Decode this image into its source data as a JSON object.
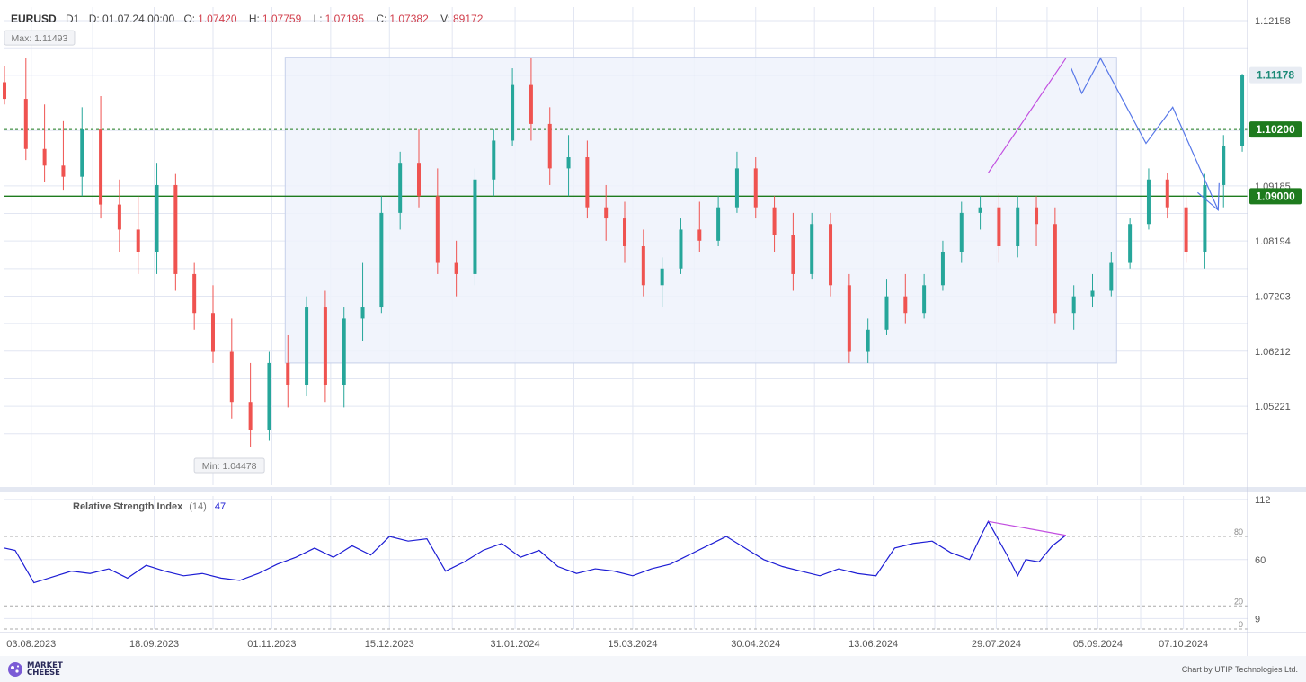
{
  "header": {
    "symbol": "EURUSD",
    "timeframe": "D1",
    "date_label": "D: 01.07.24 00:00",
    "open_label": "O:",
    "open": "1.07420",
    "high_label": "H:",
    "high": "1.07759",
    "low_label": "L:",
    "low": "1.07195",
    "close_label": "C:",
    "close": "1.07382",
    "volume_label": "V:",
    "volume": "89172"
  },
  "footer": {
    "brand_line1": "MARKET",
    "brand_line2": "CHEESE",
    "credit": "Chart by UTIP Technologies Ltd."
  },
  "colors": {
    "bull": "#26a69a",
    "bear": "#ef5350",
    "rsi": "#1d1dd4",
    "divergence": "#c24ee0",
    "forecast": "#5878e8",
    "level": "#1e7b1e",
    "range_box": "#eef2fb",
    "grid": "#e2e6f2"
  },
  "chart_data": [
    {
      "type": "candlestick",
      "title": "EURUSD D1",
      "y_ticks": [
        "1.12158",
        "1.11178",
        "1.09185",
        "1.08194",
        "1.07203",
        "1.06212",
        "1.05221"
      ],
      "x_ticks": [
        "03.08.2023",
        "18.09.2023",
        "01.11.2023",
        "15.12.2023",
        "31.01.2024",
        "15.03.2024",
        "30.04.2024",
        "13.06.2024",
        "29.07.2024",
        "05.09.2024",
        "07.10.2024"
      ],
      "ylim": [
        1.038,
        1.124
      ],
      "x_range": [
        "2023-07-24",
        "2024-10-31"
      ],
      "max_label": "Max: 1.11493",
      "max_value": 1.11493,
      "max_date": "2023-07-26",
      "min_label": "Min: 1.04478",
      "min_value": 1.04478,
      "min_date": "2023-10-05",
      "current_price": "1.11178",
      "current_value": 1.11178,
      "levels": [
        {
          "value": 1.102,
          "label": "1.10200",
          "style": "dashed"
        },
        {
          "value": 1.09,
          "label": "1.09000",
          "style": "solid"
        }
      ],
      "range_box": {
        "from": "2023-11-06",
        "to": "2024-09-12",
        "high": 1.115,
        "low": 1.06
      },
      "divergence_line": [
        {
          "date": "2024-07-26",
          "value": 1.0942
        },
        {
          "date": "2024-08-24",
          "value": 1.1148
        }
      ],
      "forecast_path": [
        {
          "date": "2024-08-26",
          "value": 1.113
        },
        {
          "date": "2024-08-30",
          "value": 1.1085
        },
        {
          "date": "2024-09-06",
          "value": 1.1148
        },
        {
          "date": "2024-09-23",
          "value": 1.0995
        },
        {
          "date": "2024-10-03",
          "value": 1.106
        },
        {
          "date": "2024-10-20",
          "value": 1.0875
        }
      ],
      "candles": [
        {
          "date": "2023-07-24",
          "o": 1.1105,
          "h": 1.1135,
          "l": 1.1065,
          "c": 1.1075
        },
        {
          "date": "2023-08-01",
          "o": 1.1075,
          "h": 1.1149,
          "l": 1.0965,
          "c": 1.0985
        },
        {
          "date": "2023-08-08",
          "o": 1.0985,
          "h": 1.1065,
          "l": 1.0925,
          "c": 1.0955
        },
        {
          "date": "2023-08-15",
          "o": 1.0955,
          "h": 1.1035,
          "l": 1.091,
          "c": 1.0935
        },
        {
          "date": "2023-08-22",
          "o": 1.0935,
          "h": 1.106,
          "l": 1.09,
          "c": 1.102
        },
        {
          "date": "2023-08-29",
          "o": 1.102,
          "h": 1.108,
          "l": 1.086,
          "c": 1.0885
        },
        {
          "date": "2023-09-05",
          "o": 1.0885,
          "h": 1.093,
          "l": 1.08,
          "c": 1.084
        },
        {
          "date": "2023-09-12",
          "o": 1.084,
          "h": 1.09,
          "l": 1.076,
          "c": 1.08
        },
        {
          "date": "2023-09-19",
          "o": 1.08,
          "h": 1.096,
          "l": 1.076,
          "c": 1.092
        },
        {
          "date": "2023-09-26",
          "o": 1.092,
          "h": 1.094,
          "l": 1.073,
          "c": 1.076
        },
        {
          "date": "2023-10-03",
          "o": 1.076,
          "h": 1.078,
          "l": 1.066,
          "c": 1.069
        },
        {
          "date": "2023-10-10",
          "o": 1.069,
          "h": 1.074,
          "l": 1.06,
          "c": 1.062
        },
        {
          "date": "2023-10-17",
          "o": 1.062,
          "h": 1.068,
          "l": 1.05,
          "c": 1.053
        },
        {
          "date": "2023-10-24",
          "o": 1.053,
          "h": 1.06,
          "l": 1.0448,
          "c": 1.048
        },
        {
          "date": "2023-10-31",
          "o": 1.048,
          "h": 1.062,
          "l": 1.046,
          "c": 1.06
        },
        {
          "date": "2023-11-07",
          "o": 1.06,
          "h": 1.065,
          "l": 1.052,
          "c": 1.056
        },
        {
          "date": "2023-11-14",
          "o": 1.056,
          "h": 1.072,
          "l": 1.054,
          "c": 1.07
        },
        {
          "date": "2023-11-21",
          "o": 1.07,
          "h": 1.073,
          "l": 1.053,
          "c": 1.056
        },
        {
          "date": "2023-11-28",
          "o": 1.056,
          "h": 1.07,
          "l": 1.052,
          "c": 1.068
        },
        {
          "date": "2023-12-05",
          "o": 1.068,
          "h": 1.078,
          "l": 1.064,
          "c": 1.07
        },
        {
          "date": "2023-12-12",
          "o": 1.07,
          "h": 1.09,
          "l": 1.069,
          "c": 1.087
        },
        {
          "date": "2023-12-19",
          "o": 1.087,
          "h": 1.098,
          "l": 1.084,
          "c": 1.096
        },
        {
          "date": "2023-12-26",
          "o": 1.096,
          "h": 1.102,
          "l": 1.088,
          "c": 1.09
        },
        {
          "date": "2024-01-02",
          "o": 1.09,
          "h": 1.095,
          "l": 1.076,
          "c": 1.078
        },
        {
          "date": "2024-01-09",
          "o": 1.078,
          "h": 1.082,
          "l": 1.072,
          "c": 1.076
        },
        {
          "date": "2024-01-16",
          "o": 1.076,
          "h": 1.095,
          "l": 1.074,
          "c": 1.093
        },
        {
          "date": "2024-01-23",
          "o": 1.093,
          "h": 1.102,
          "l": 1.09,
          "c": 1.1
        },
        {
          "date": "2024-01-30",
          "o": 1.1,
          "h": 1.113,
          "l": 1.099,
          "c": 1.11
        },
        {
          "date": "2024-02-06",
          "o": 1.11,
          "h": 1.1149,
          "l": 1.1,
          "c": 1.103
        },
        {
          "date": "2024-02-13",
          "o": 1.103,
          "h": 1.106,
          "l": 1.092,
          "c": 1.095
        },
        {
          "date": "2024-02-20",
          "o": 1.095,
          "h": 1.101,
          "l": 1.09,
          "c": 1.097
        },
        {
          "date": "2024-02-27",
          "o": 1.097,
          "h": 1.1,
          "l": 1.086,
          "c": 1.088
        },
        {
          "date": "2024-03-05",
          "o": 1.088,
          "h": 1.092,
          "l": 1.082,
          "c": 1.086
        },
        {
          "date": "2024-03-12",
          "o": 1.086,
          "h": 1.089,
          "l": 1.078,
          "c": 1.081
        },
        {
          "date": "2024-03-19",
          "o": 1.081,
          "h": 1.084,
          "l": 1.072,
          "c": 1.074
        },
        {
          "date": "2024-03-26",
          "o": 1.074,
          "h": 1.079,
          "l": 1.07,
          "c": 1.077
        },
        {
          "date": "2024-04-02",
          "o": 1.077,
          "h": 1.086,
          "l": 1.076,
          "c": 1.084
        },
        {
          "date": "2024-04-09",
          "o": 1.084,
          "h": 1.089,
          "l": 1.08,
          "c": 1.082
        },
        {
          "date": "2024-04-16",
          "o": 1.082,
          "h": 1.09,
          "l": 1.081,
          "c": 1.088
        },
        {
          "date": "2024-04-23",
          "o": 1.088,
          "h": 1.098,
          "l": 1.087,
          "c": 1.095
        },
        {
          "date": "2024-04-30",
          "o": 1.095,
          "h": 1.097,
          "l": 1.086,
          "c": 1.088
        },
        {
          "date": "2024-05-07",
          "o": 1.088,
          "h": 1.09,
          "l": 1.08,
          "c": 1.083
        },
        {
          "date": "2024-05-14",
          "o": 1.083,
          "h": 1.087,
          "l": 1.073,
          "c": 1.076
        },
        {
          "date": "2024-05-21",
          "o": 1.076,
          "h": 1.087,
          "l": 1.075,
          "c": 1.085
        },
        {
          "date": "2024-05-28",
          "o": 1.085,
          "h": 1.087,
          "l": 1.072,
          "c": 1.074
        },
        {
          "date": "2024-06-04",
          "o": 1.074,
          "h": 1.076,
          "l": 1.06,
          "c": 1.062
        },
        {
          "date": "2024-06-11",
          "o": 1.062,
          "h": 1.068,
          "l": 1.06,
          "c": 1.066
        },
        {
          "date": "2024-06-18",
          "o": 1.066,
          "h": 1.075,
          "l": 1.065,
          "c": 1.072
        },
        {
          "date": "2024-06-25",
          "o": 1.072,
          "h": 1.076,
          "l": 1.067,
          "c": 1.069
        },
        {
          "date": "2024-07-02",
          "o": 1.069,
          "h": 1.076,
          "l": 1.068,
          "c": 1.074
        },
        {
          "date": "2024-07-09",
          "o": 1.074,
          "h": 1.082,
          "l": 1.073,
          "c": 1.08
        },
        {
          "date": "2024-07-16",
          "o": 1.08,
          "h": 1.089,
          "l": 1.078,
          "c": 1.087
        },
        {
          "date": "2024-07-23",
          "o": 1.087,
          "h": 1.09,
          "l": 1.084,
          "c": 1.088
        },
        {
          "date": "2024-07-30",
          "o": 1.088,
          "h": 1.0905,
          "l": 1.078,
          "c": 1.081
        },
        {
          "date": "2024-08-06",
          "o": 1.081,
          "h": 1.09,
          "l": 1.079,
          "c": 1.088
        },
        {
          "date": "2024-08-13",
          "o": 1.088,
          "h": 1.09,
          "l": 1.081,
          "c": 1.085
        },
        {
          "date": "2024-08-20",
          "o": 1.085,
          "h": 1.088,
          "l": 1.067,
          "c": 1.069
        },
        {
          "date": "2024-08-27",
          "o": 1.069,
          "h": 1.074,
          "l": 1.066,
          "c": 1.072
        },
        {
          "date": "2024-09-03",
          "o": 1.072,
          "h": 1.076,
          "l": 1.07,
          "c": 1.073
        },
        {
          "date": "2024-09-10",
          "o": 1.073,
          "h": 1.08,
          "l": 1.072,
          "c": 1.078
        },
        {
          "date": "2024-09-17",
          "o": 1.078,
          "h": 1.086,
          "l": 1.077,
          "c": 1.085
        },
        {
          "date": "2024-09-24",
          "o": 1.085,
          "h": 1.095,
          "l": 1.084,
          "c": 1.093
        },
        {
          "date": "2024-10-01",
          "o": 1.093,
          "h": 1.0942,
          "l": 1.086,
          "c": 1.088
        },
        {
          "date": "2024-10-08",
          "o": 1.088,
          "h": 1.09,
          "l": 1.078,
          "c": 1.08
        },
        {
          "date": "2024-10-15",
          "o": 1.08,
          "h": 1.094,
          "l": 1.077,
          "c": 1.092
        },
        {
          "date": "2024-10-22",
          "o": 1.092,
          "h": 1.101,
          "l": 1.088,
          "c": 1.099
        },
        {
          "date": "2024-10-29",
          "o": 1.099,
          "h": 1.112,
          "l": 1.098,
          "c": 1.1118
        }
      ]
    },
    {
      "type": "line",
      "title": "Relative Strength Index",
      "period": "(14)",
      "current": "47",
      "ylim": [
        0,
        115
      ],
      "y_ticks": [
        "112",
        "60",
        "9"
      ],
      "levels": [
        {
          "value": 80,
          "label": "80"
        },
        {
          "value": 20,
          "label": "20"
        },
        {
          "value": 0,
          "label": "0"
        }
      ],
      "divergence_line": [
        {
          "date": "2024-07-26",
          "value": 93
        },
        {
          "date": "2024-08-24",
          "value": 81
        }
      ],
      "series": [
        {
          "points": [
            [
              "2023-07-24",
              70
            ],
            [
              "2023-07-28",
              68
            ],
            [
              "2023-08-04",
              40
            ],
            [
              "2023-08-11",
              45
            ],
            [
              "2023-08-18",
              50
            ],
            [
              "2023-08-25",
              48
            ],
            [
              "2023-09-01",
              52
            ],
            [
              "2023-09-08",
              44
            ],
            [
              "2023-09-15",
              55
            ],
            [
              "2023-09-22",
              50
            ],
            [
              "2023-09-29",
              46
            ],
            [
              "2023-10-06",
              48
            ],
            [
              "2023-10-13",
              44
            ],
            [
              "2023-10-20",
              42
            ],
            [
              "2023-10-27",
              48
            ],
            [
              "2023-11-03",
              56
            ],
            [
              "2023-11-10",
              62
            ],
            [
              "2023-11-17",
              70
            ],
            [
              "2023-11-24",
              62
            ],
            [
              "2023-12-01",
              72
            ],
            [
              "2023-12-08",
              64
            ],
            [
              "2023-12-15",
              80
            ],
            [
              "2023-12-22",
              76
            ],
            [
              "2023-12-29",
              78
            ],
            [
              "2024-01-05",
              50
            ],
            [
              "2024-01-12",
              58
            ],
            [
              "2024-01-19",
              68
            ],
            [
              "2024-01-26",
              74
            ],
            [
              "2024-02-02",
              62
            ],
            [
              "2024-02-09",
              68
            ],
            [
              "2024-02-16",
              54
            ],
            [
              "2024-02-23",
              48
            ],
            [
              "2024-03-01",
              52
            ],
            [
              "2024-03-08",
              50
            ],
            [
              "2024-03-15",
              46
            ],
            [
              "2024-03-22",
              52
            ],
            [
              "2024-03-29",
              56
            ],
            [
              "2024-04-05",
              64
            ],
            [
              "2024-04-12",
              72
            ],
            [
              "2024-04-19",
              80
            ],
            [
              "2024-04-26",
              70
            ],
            [
              "2024-05-03",
              60
            ],
            [
              "2024-05-10",
              54
            ],
            [
              "2024-05-17",
              50
            ],
            [
              "2024-05-24",
              46
            ],
            [
              "2024-05-31",
              52
            ],
            [
              "2024-06-07",
              48
            ],
            [
              "2024-06-14",
              46
            ],
            [
              "2024-06-21",
              70
            ],
            [
              "2024-06-28",
              74
            ],
            [
              "2024-07-05",
              76
            ],
            [
              "2024-07-12",
              66
            ],
            [
              "2024-07-19",
              60
            ],
            [
              "2024-07-24",
              84
            ],
            [
              "2024-07-26",
              93
            ],
            [
              "2024-08-02",
              64
            ],
            [
              "2024-08-06",
              46
            ],
            [
              "2024-08-09",
              60
            ],
            [
              "2024-08-14",
              58
            ],
            [
              "2024-08-19",
              72
            ],
            [
              "2024-08-24",
              81
            ]
          ]
        }
      ]
    }
  ]
}
